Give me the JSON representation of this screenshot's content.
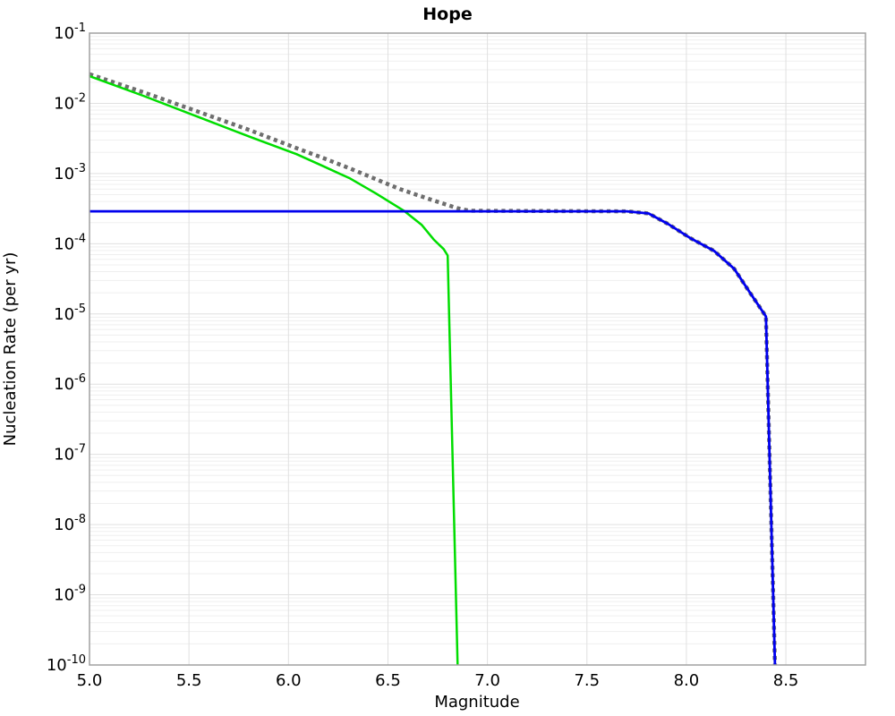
{
  "chart_data": {
    "type": "line",
    "title": "Hope",
    "xlabel": "Magnitude",
    "ylabel": "Nucleation Rate (per yr)",
    "xlim": [
      5.0,
      8.9
    ],
    "ylim": [
      1e-10,
      0.1
    ],
    "ylim_exponents": [
      -10,
      -1
    ],
    "x_scale": "linear",
    "y_scale": "log",
    "grid": "on",
    "legend": "none",
    "x_ticks": [
      5.0,
      5.5,
      6.0,
      6.5,
      7.0,
      7.5,
      8.0,
      8.5
    ],
    "x_tick_labels": [
      "5.0",
      "5.5",
      "6.0",
      "6.5",
      "7.0",
      "7.5",
      "8.0",
      "8.5"
    ],
    "y_tick_exponents": [
      -1,
      -2,
      -3,
      -4,
      -5,
      -6,
      -7,
      -8,
      -9,
      -10
    ],
    "colors": {
      "green_series": "#00dd00",
      "blue_series": "#0000ee",
      "gray_dotted_series": "#6e6e6e",
      "grid_minor": "#efefef",
      "grid_major": "#e0e0e0",
      "frame": "#a0a0a0"
    },
    "series": [
      {
        "name": "total-rate-dotted-gray",
        "style": "dotted",
        "color": "#6e6e6e",
        "width": 4.5,
        "points": [
          [
            5.0,
            0.026
          ],
          [
            5.27,
            0.0144
          ],
          [
            5.54,
            0.0077
          ],
          [
            5.81,
            0.0041
          ],
          [
            6.04,
            0.0023
          ],
          [
            6.17,
            0.00168
          ],
          [
            6.31,
            0.00118
          ],
          [
            6.41,
            0.0009
          ],
          [
            6.56,
            0.0006
          ],
          [
            6.71,
            0.00043
          ],
          [
            6.85,
            0.00032
          ],
          [
            6.91,
            0.000295
          ],
          [
            7.7,
            0.00029
          ],
          [
            7.81,
            0.00027
          ],
          [
            7.91,
            0.00019
          ],
          [
            8.02,
            0.00012
          ],
          [
            8.14,
            7.9e-05
          ],
          [
            8.24,
            4.4e-05
          ],
          [
            8.32,
            2e-05
          ],
          [
            8.4,
            9.2e-06
          ],
          [
            8.445,
            1e-10
          ]
        ]
      },
      {
        "name": "branch-rate-green",
        "style": "solid",
        "color": "#00dd00",
        "width": 2.5,
        "points": [
          [
            5.0,
            0.0244
          ],
          [
            5.27,
            0.0128
          ],
          [
            5.54,
            0.0065
          ],
          [
            5.81,
            0.0033
          ],
          [
            6.04,
            0.00189
          ],
          [
            6.17,
            0.00129
          ],
          [
            6.31,
            0.00085
          ],
          [
            6.44,
            0.00052
          ],
          [
            6.58,
            0.000296
          ],
          [
            6.67,
            0.000185
          ],
          [
            6.73,
            0.000115
          ],
          [
            6.78,
            8.4e-05
          ],
          [
            6.8,
            6.8e-05
          ],
          [
            6.85,
            1e-10
          ]
        ]
      },
      {
        "name": "branch-rate-blue",
        "style": "solid",
        "color": "#0000ee",
        "width": 2.8,
        "points": [
          [
            5.0,
            0.00029
          ],
          [
            7.7,
            0.00029
          ],
          [
            7.81,
            0.00027
          ],
          [
            7.91,
            0.00019
          ],
          [
            8.02,
            0.00012
          ],
          [
            8.14,
            7.9e-05
          ],
          [
            8.24,
            4.4e-05
          ],
          [
            8.32,
            2e-05
          ],
          [
            8.4,
            9.2e-06
          ],
          [
            8.445,
            1e-10
          ]
        ]
      }
    ]
  }
}
